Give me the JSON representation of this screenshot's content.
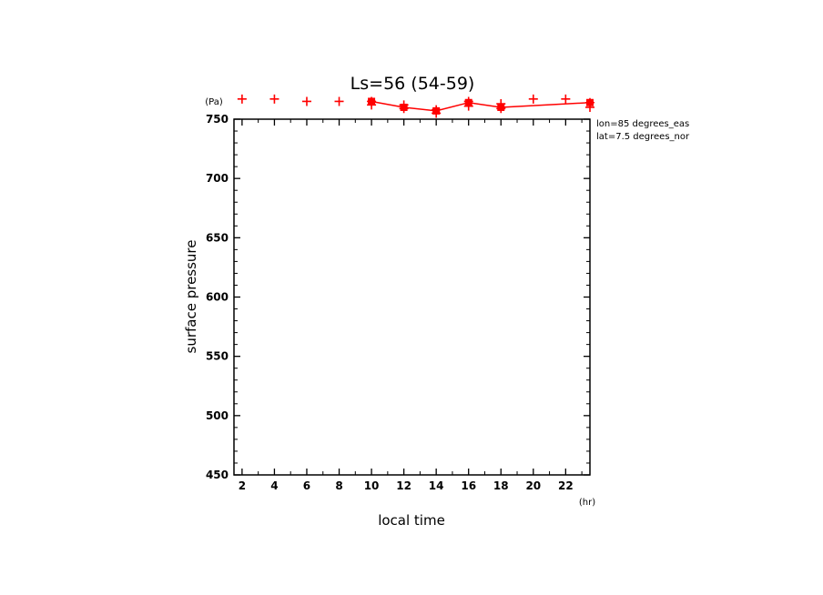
{
  "chart_data": {
    "type": "scatter",
    "title": "Ls=56 (54-59)",
    "xlabel": "local time",
    "ylabel": "surface pressure",
    "x_unit": "(hr)",
    "y_unit": "(Pa)",
    "xlim": [
      1.5,
      23.5
    ],
    "ylim": [
      450,
      750
    ],
    "x_ticks": [
      2,
      4,
      6,
      8,
      10,
      12,
      14,
      16,
      18,
      20,
      22
    ],
    "y_ticks": [
      450,
      500,
      550,
      600,
      650,
      700,
      750
    ],
    "annotations": [
      "lon=85 degrees_eas",
      "lat=7.5 degrees_nor"
    ],
    "grid": false,
    "series": [
      {
        "marker": "line-square",
        "color": "#ff0000",
        "x": [
          10,
          12,
          14,
          16,
          18,
          23.5
        ],
        "y": [
          765,
          760,
          757,
          764,
          760,
          764
        ]
      },
      {
        "marker": "plus",
        "color": "#ff0000",
        "x": [
          2,
          4,
          6,
          8,
          10,
          10,
          12,
          12,
          14,
          14,
          16,
          16,
          18,
          18,
          20,
          22,
          23.5,
          23.5
        ],
        "y": [
          767,
          767,
          765,
          765,
          765,
          762,
          762,
          759,
          758,
          755,
          765,
          761,
          763,
          759,
          767,
          767,
          764,
          760
        ]
      }
    ]
  }
}
